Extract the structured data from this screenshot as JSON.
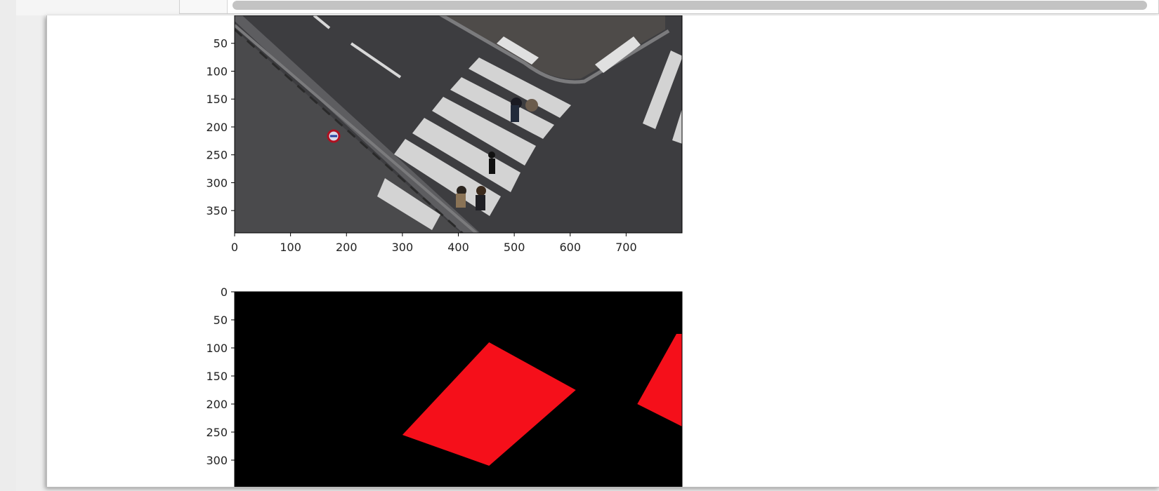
{
  "colors": {
    "panel_bg": "#ffffff",
    "scroll_thumb": "#c3c3c3",
    "mask_bg": "#000000",
    "mask_region": "#f50f1a",
    "asphalt": "#3e3e40",
    "crosswalk": "#d9d9d9"
  },
  "scrollbar": {
    "orientation": "horizontal"
  },
  "chart_data": [
    {
      "type": "image",
      "content": "top-down photo of street crosswalk with pedestrians",
      "xlabel": "",
      "ylabel": "",
      "xlim": [
        0,
        800
      ],
      "ylim": [
        400,
        0
      ],
      "xticks": [
        "0",
        "100",
        "200",
        "300",
        "400",
        "500",
        "600",
        "700"
      ],
      "yticks": [
        "50",
        "100",
        "150",
        "200",
        "250",
        "300",
        "350"
      ],
      "grid": false
    },
    {
      "type": "image",
      "content": "segmentation mask: red crosswalk regions on black",
      "xlabel": "",
      "ylabel": "",
      "xlim": [
        0,
        800
      ],
      "ylim": [
        400,
        0
      ],
      "yticks": [
        "0",
        "50",
        "100",
        "150",
        "200",
        "250",
        "300"
      ],
      "regions": [
        {
          "label": "crosswalk",
          "polygon": [
            [
              455,
              90
            ],
            [
              610,
              175
            ],
            [
              455,
              310
            ],
            [
              300,
              255
            ]
          ]
        },
        {
          "label": "crosswalk",
          "polygon": [
            [
              790,
              75
            ],
            [
              800,
              75
            ],
            [
              800,
              240
            ],
            [
              720,
              200
            ]
          ]
        }
      ],
      "grid": false
    }
  ]
}
